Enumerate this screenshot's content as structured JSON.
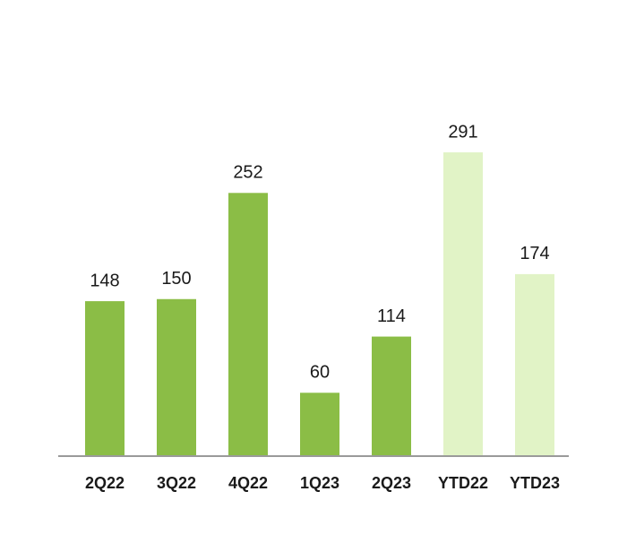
{
  "chart_data": {
    "type": "bar",
    "categories": [
      "2Q22",
      "3Q22",
      "4Q22",
      "1Q23",
      "2Q23",
      "YTD22",
      "YTD23"
    ],
    "values": [
      148,
      150,
      252,
      60,
      114,
      291,
      174
    ],
    "colors": [
      "#8bbd46",
      "#8bbd46",
      "#8bbd46",
      "#8bbd46",
      "#8bbd46",
      "#e1f3c6",
      "#e1f3c6"
    ]
  }
}
